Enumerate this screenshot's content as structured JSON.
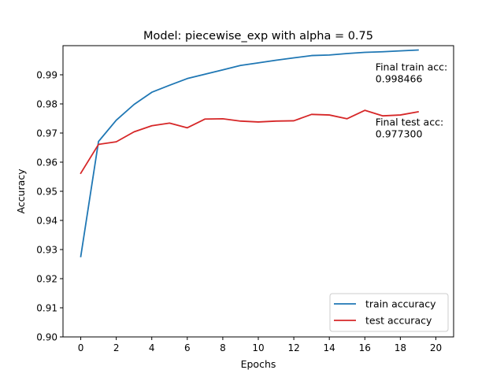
{
  "chart_data": {
    "type": "line",
    "title": "Model: piecewise_exp with alpha = 0.75",
    "xlabel": "Epochs",
    "ylabel": "Accuracy",
    "xlim": [
      -1,
      21
    ],
    "ylim": [
      0.9,
      1.0
    ],
    "xticks": [
      0,
      2,
      4,
      6,
      8,
      10,
      12,
      14,
      16,
      18,
      20
    ],
    "yticks": [
      0.9,
      0.91,
      0.92,
      0.93,
      0.94,
      0.95,
      0.96,
      0.97,
      0.98,
      0.99
    ],
    "grid": false,
    "legend_position": "bottom-right",
    "x": [
      0,
      1,
      2,
      3,
      4,
      5,
      6,
      7,
      8,
      9,
      10,
      11,
      12,
      13,
      14,
      15,
      16,
      17,
      18,
      19
    ],
    "series": [
      {
        "name": "train accuracy",
        "color": "#1f77b4",
        "values": [
          0.9276,
          0.9671,
          0.9744,
          0.9798,
          0.984,
          0.9864,
          0.9887,
          0.9902,
          0.9917,
          0.9932,
          0.9941,
          0.995,
          0.9958,
          0.9966,
          0.9968,
          0.9973,
          0.9977,
          0.9979,
          0.9982,
          0.9985
        ]
      },
      {
        "name": "test accuracy",
        "color": "#d62728",
        "values": [
          0.9562,
          0.9661,
          0.967,
          0.9704,
          0.9725,
          0.9734,
          0.9718,
          0.9748,
          0.9749,
          0.9741,
          0.9738,
          0.9741,
          0.9742,
          0.9764,
          0.9762,
          0.9749,
          0.9778,
          0.9759,
          0.9762,
          0.9773
        ]
      }
    ],
    "annotations": [
      {
        "line1": "Final train acc:",
        "line2": "0.998466",
        "x": 16.6,
        "y": 0.9902
      },
      {
        "line1": "Final test acc:",
        "line2": "0.977300",
        "x": 16.6,
        "y": 0.9712
      }
    ]
  }
}
